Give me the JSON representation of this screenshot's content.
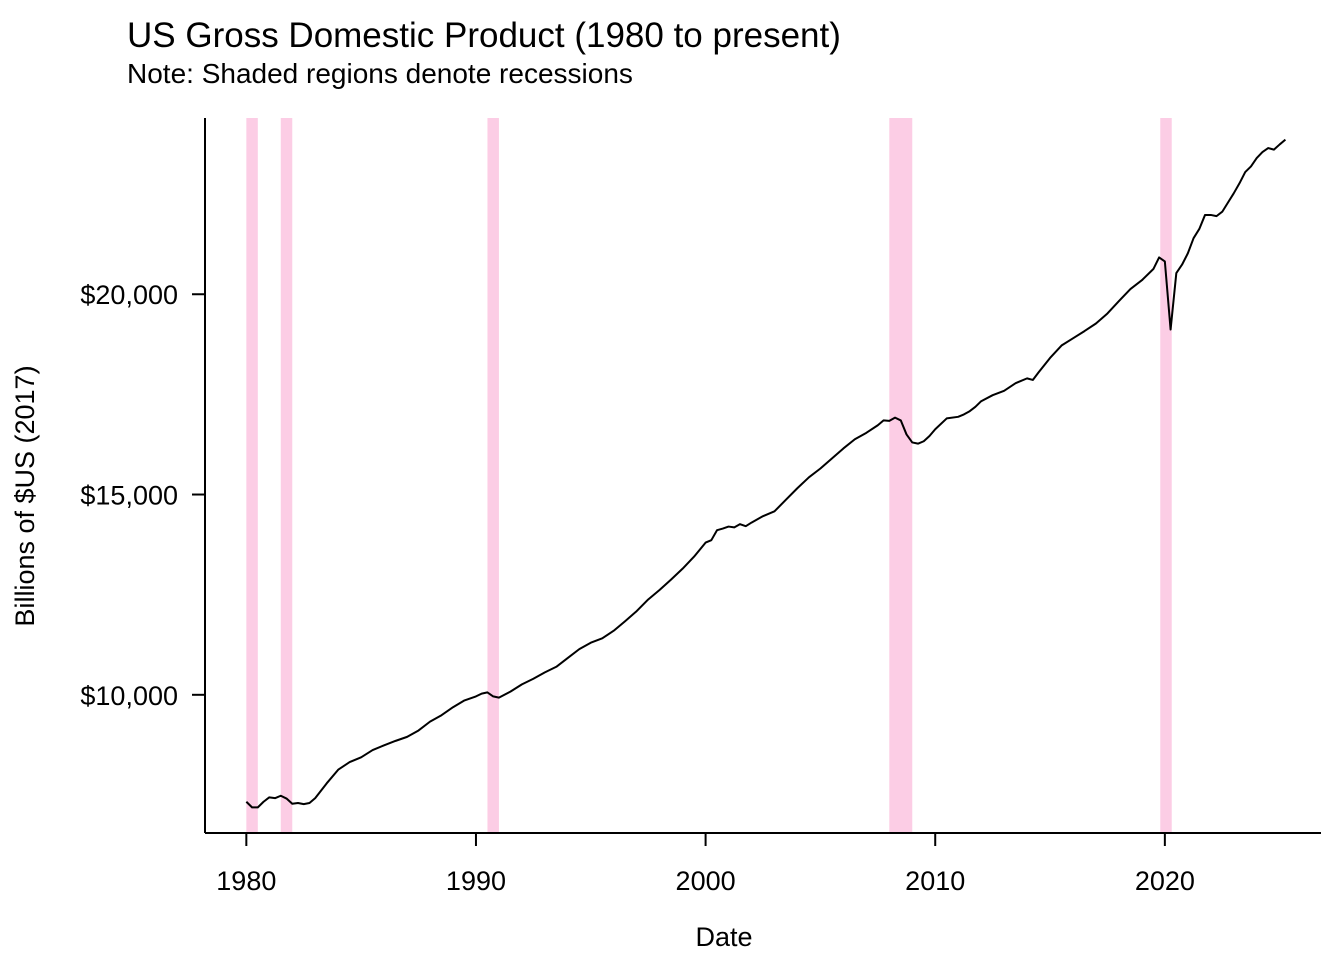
{
  "chart_data": {
    "type": "line",
    "title": "US Gross Domestic Product (1980 to present)",
    "subtitle": "Note: Shaded regions denote recessions",
    "xlabel": "Date",
    "ylabel": "Billions of $US (2017)",
    "xlim": [
      1978.2,
      2026.8
    ],
    "ylim": [
      6550,
      24400
    ],
    "x_ticks": [
      1980,
      1990,
      2000,
      2010,
      2020
    ],
    "x_tick_labels": [
      "1980",
      "1990",
      "2000",
      "2010",
      "2020"
    ],
    "y_ticks": [
      10000,
      15000,
      20000
    ],
    "y_tick_labels": [
      "$10,000",
      "$15,000",
      "$20,000"
    ],
    "grid": false,
    "legend": "none",
    "colors": {
      "line": "#000000",
      "recession": "#fccde5"
    },
    "recessions": [
      {
        "start": 1980.0,
        "end": 1980.5
      },
      {
        "start": 1981.5,
        "end": 1982.0
      },
      {
        "start": 1990.5,
        "end": 1991.0
      },
      {
        "start": 2008.0,
        "end": 2009.0
      },
      {
        "start": 2019.8,
        "end": 2020.3
      }
    ],
    "series": [
      {
        "x": [
          1980.0,
          1980.25,
          1980.5,
          1980.75,
          1981.0,
          1981.25,
          1981.5,
          1981.75,
          1982.0,
          1982.25,
          1982.5,
          1982.75,
          1983.0,
          1983.5,
          1984.0,
          1984.5,
          1985.0,
          1985.5,
          1986.0,
          1986.5,
          1987.0,
          1987.5,
          1988.0,
          1988.5,
          1989.0,
          1989.5,
          1990.0,
          1990.25,
          1990.5,
          1990.75,
          1991.0,
          1991.5,
          1992.0,
          1992.5,
          1993.0,
          1993.5,
          1994.0,
          1994.5,
          1995.0,
          1995.5,
          1996.0,
          1996.5,
          1997.0,
          1997.5,
          1998.0,
          1998.5,
          1999.0,
          1999.5,
          2000.0,
          2000.25,
          2000.5,
          2000.75,
          2001.0,
          2001.25,
          2001.5,
          2001.75,
          2002.0,
          2002.5,
          2003.0,
          2003.5,
          2004.0,
          2004.5,
          2005.0,
          2005.5,
          2006.0,
          2006.5,
          2007.0,
          2007.5,
          2007.75,
          2008.0,
          2008.25,
          2008.5,
          2008.75,
          2009.0,
          2009.25,
          2009.5,
          2009.75,
          2010.0,
          2010.5,
          2011.0,
          2011.25,
          2011.5,
          2011.75,
          2012.0,
          2012.5,
          2013.0,
          2013.5,
          2014.0,
          2014.25,
          2014.5,
          2015.0,
          2015.5,
          2016.0,
          2016.5,
          2017.0,
          2017.5,
          2018.0,
          2018.5,
          2019.0,
          2019.5,
          2019.75,
          2020.0,
          2020.25,
          2020.5,
          2020.75,
          2021.0,
          2021.25,
          2021.5,
          2021.75,
          2022.0,
          2022.25,
          2022.5,
          2022.75,
          2023.0,
          2023.25,
          2023.5,
          2023.75,
          2024.0,
          2024.25,
          2024.5,
          2024.75,
          2025.0,
          2025.25
        ],
        "values": [
          7330,
          7190,
          7190,
          7330,
          7440,
          7420,
          7480,
          7410,
          7280,
          7300,
          7270,
          7300,
          7420,
          7790,
          8130,
          8320,
          8440,
          8620,
          8740,
          8850,
          8950,
          9110,
          9330,
          9490,
          9690,
          9860,
          9960,
          10030,
          10060,
          9960,
          9930,
          10080,
          10260,
          10400,
          10560,
          10700,
          10920,
          11140,
          11300,
          11410,
          11600,
          11840,
          12090,
          12380,
          12620,
          12880,
          13150,
          13450,
          13800,
          13860,
          14110,
          14150,
          14200,
          14180,
          14260,
          14210,
          14300,
          14460,
          14580,
          14870,
          15160,
          15430,
          15650,
          15900,
          16150,
          16380,
          16540,
          16730,
          16850,
          16840,
          16920,
          16850,
          16500,
          16300,
          16270,
          16330,
          16460,
          16630,
          16900,
          16940,
          17000,
          17080,
          17190,
          17330,
          17480,
          17590,
          17780,
          17900,
          17860,
          18050,
          18410,
          18720,
          18900,
          19080,
          19270,
          19520,
          19830,
          20130,
          20350,
          20630,
          20920,
          20820,
          19120,
          20530,
          20740,
          21020,
          21400,
          21630,
          21980,
          21980,
          21950,
          22060,
          22290,
          22520,
          22770,
          23050,
          23190,
          23400,
          23550,
          23650,
          23610,
          23740,
          23860
        ]
      }
    ]
  }
}
